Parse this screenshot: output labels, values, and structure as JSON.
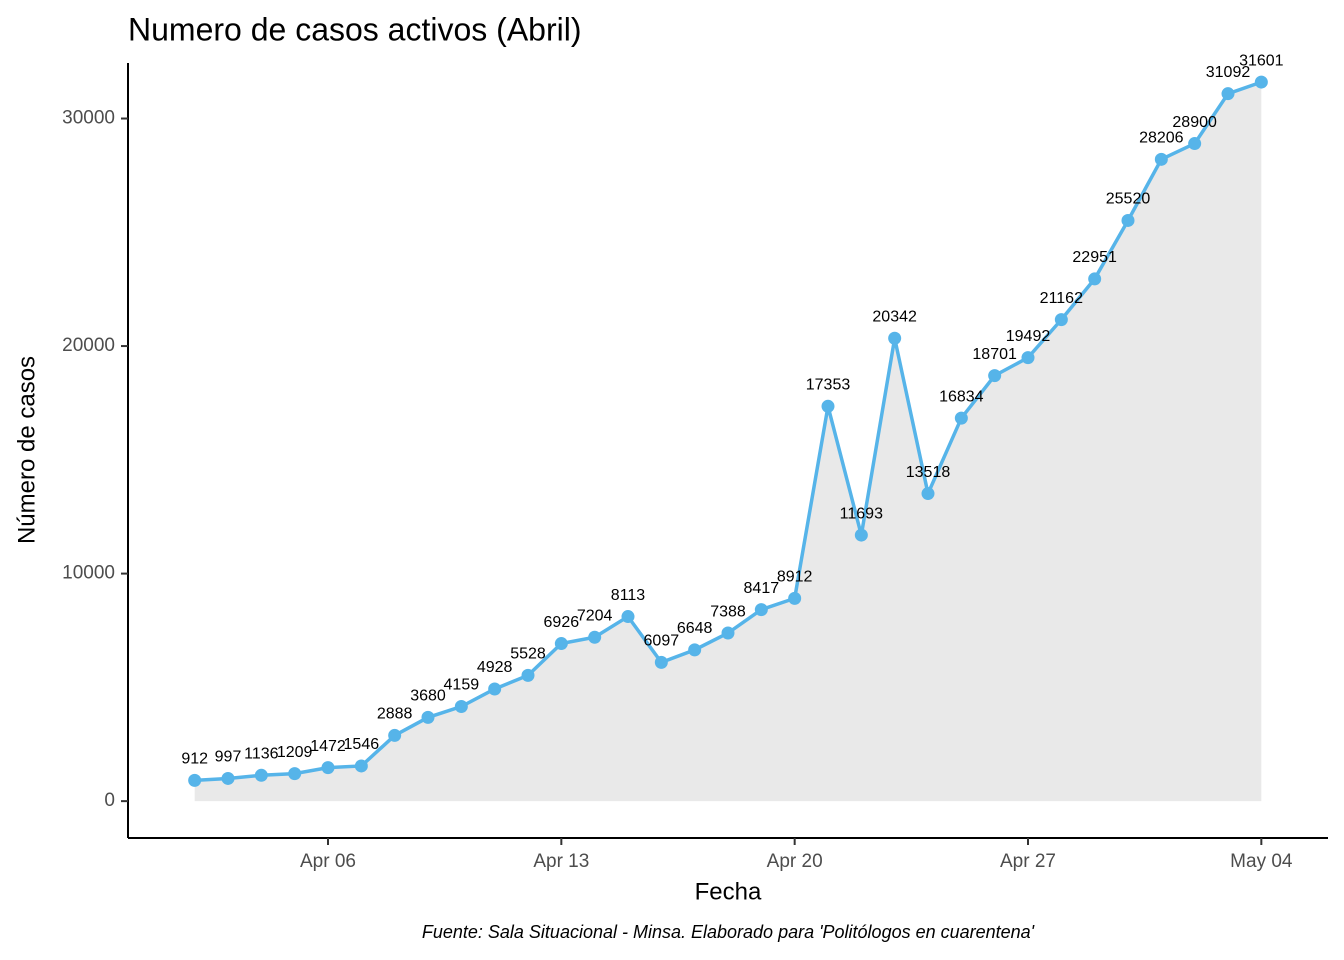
{
  "chart_data": {
    "type": "line",
    "title": "Numero de casos activos (Abril)",
    "x_label": "Fecha",
    "y_label": "Número de casos",
    "caption": "Fuente: Sala Situacional - Minsa. Elaborado para 'Politólogos en cuarentena'",
    "x": [
      "04-02",
      "04-03",
      "04-04",
      "04-05",
      "04-06",
      "04-07",
      "04-08",
      "04-09",
      "04-10",
      "04-11",
      "04-12",
      "04-13",
      "04-14",
      "04-15",
      "04-16",
      "04-17",
      "04-18",
      "04-19",
      "04-20",
      "04-21",
      "04-22",
      "04-23",
      "04-24",
      "04-25",
      "04-26",
      "04-27",
      "04-28",
      "04-29",
      "04-30",
      "05-01",
      "05-02",
      "05-03",
      "05-04"
    ],
    "series": [
      {
        "name": "casos",
        "color": "#56b4e9",
        "area_color": "#e9e9e9",
        "values": [
          912,
          997,
          1136,
          1209,
          1472,
          1546,
          2888,
          3680,
          4159,
          4928,
          5528,
          6926,
          7204,
          8113,
          6097,
          6648,
          7388,
          8417,
          8912,
          17353,
          11693,
          20342,
          13518,
          16834,
          18701,
          19492,
          21162,
          22951,
          25520,
          28206,
          28900,
          31092,
          31601
        ]
      }
    ],
    "xlim": [
      "03-31",
      "05-06"
    ],
    "xticks": [
      {
        "value": "04-06",
        "label": "Apr 06"
      },
      {
        "value": "04-13",
        "label": "Apr 13"
      },
      {
        "value": "04-20",
        "label": "Apr 20"
      },
      {
        "value": "04-27",
        "label": "Apr 27"
      },
      {
        "value": "05-04",
        "label": "May 04"
      }
    ],
    "ylim": [
      -1620,
      32440
    ],
    "yticks": [
      0,
      10000,
      20000,
      30000
    ],
    "grid": false,
    "data_labels": true
  }
}
